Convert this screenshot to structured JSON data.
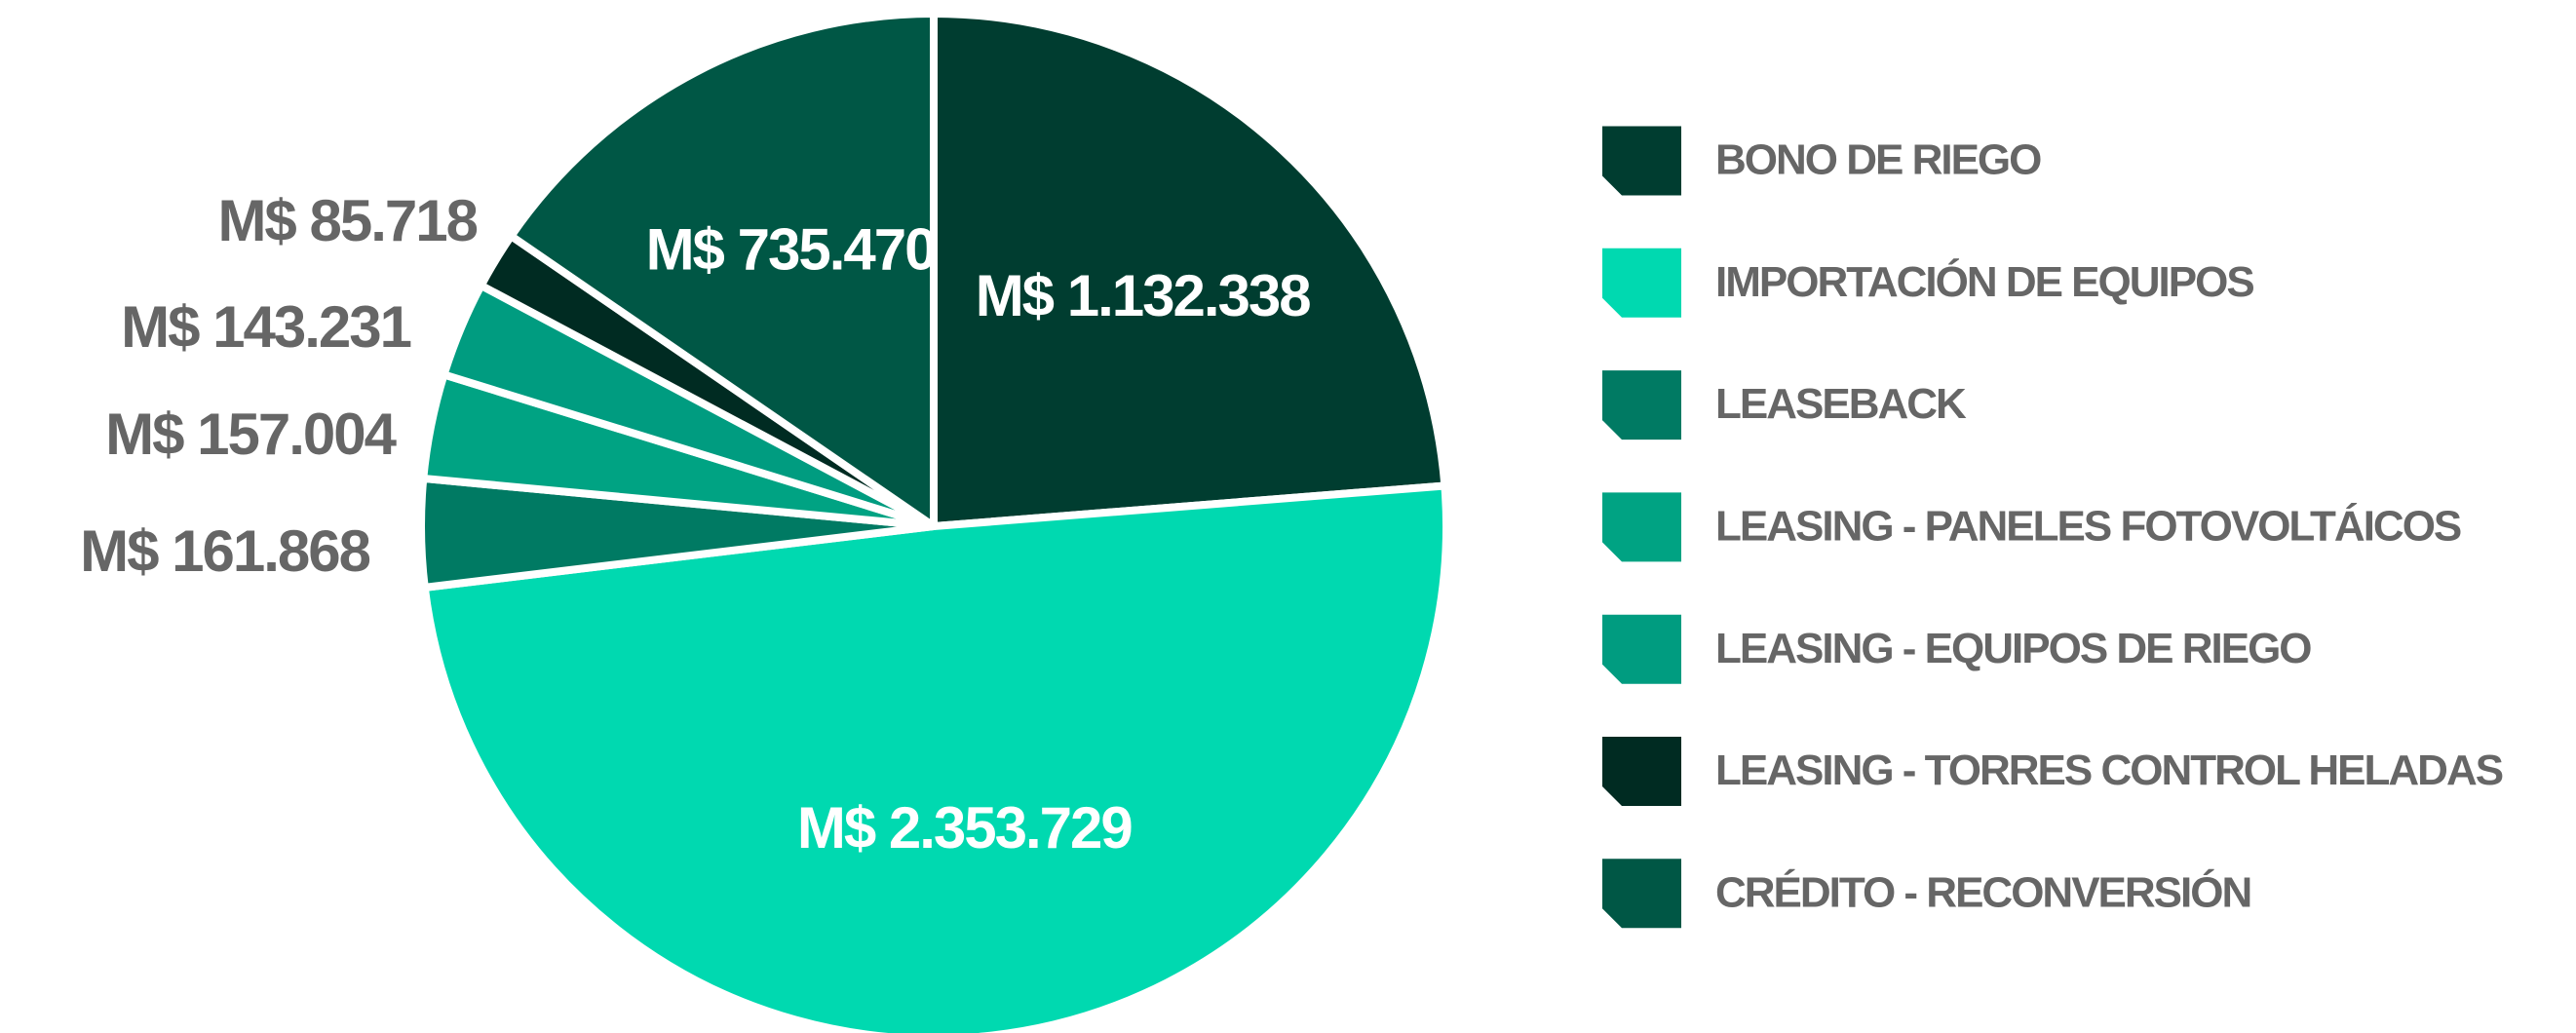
{
  "chart_data": {
    "type": "pie",
    "categories": [
      "BONO DE RIEGO",
      "IMPORTACIÓN DE EQUIPOS",
      "LEASEBACK",
      "LEASING - PANELES FOTOVOLTÁICOS",
      "LEASING - EQUIPOS DE RIEGO",
      "LEASING - TORRES CONTROL HELADAS",
      "CRÉDITO - RECONVERSIÓN"
    ],
    "values": [
      1132338,
      2353729,
      161868,
      157004,
      143231,
      85718,
      735470
    ],
    "value_labels": [
      "M$ 1.132.338",
      "M$ 2.353.729",
      "M$ 161.868",
      "M$ 157.004",
      "M$ 143.231",
      "M$ 85.718",
      "M$ 735.470"
    ],
    "colors": [
      "#003d30",
      "#00d9b0",
      "#007a63",
      "#00a383",
      "#009c80",
      "#002b22",
      "#005745"
    ],
    "legend": "right"
  }
}
